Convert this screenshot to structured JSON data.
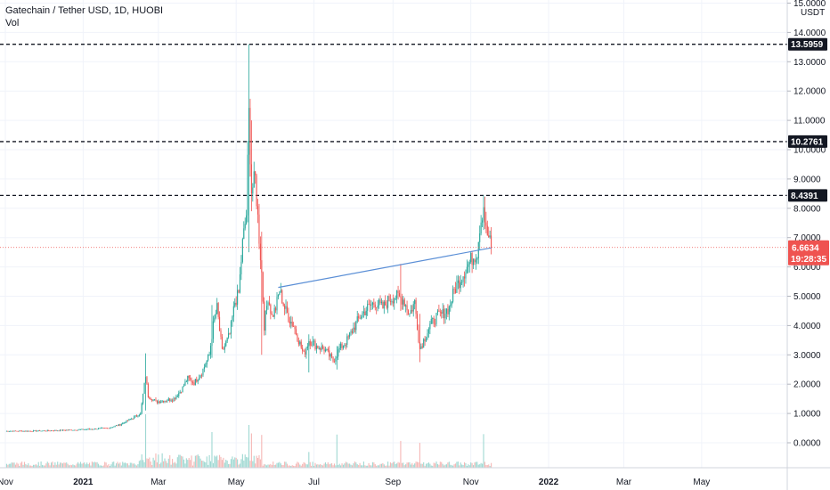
{
  "header": {
    "title": "Gatechain / Tether USD, 1D, HUOBI",
    "volume_label": "Vol"
  },
  "chart_data": {
    "type": "candlestick",
    "currency": "USDT",
    "ylim": [
      -0.4,
      15.2
    ],
    "y_ticks": [
      "15.0000",
      "14.0000",
      "13.0000",
      "12.0000",
      "11.0000",
      "10.0000",
      "9.0000",
      "8.0000",
      "7.0000",
      "6.0000",
      "5.0000",
      "4.0000",
      "3.0000",
      "2.0000",
      "1.0000",
      "0.0000"
    ],
    "x_ticks": [
      {
        "label": "Nov",
        "t": 0
      },
      {
        "label": "2021",
        "t": 61
      },
      {
        "label": "Mar",
        "t": 120
      },
      {
        "label": "May",
        "t": 181
      },
      {
        "label": "Jul",
        "t": 242
      },
      {
        "label": "Sep",
        "t": 304
      },
      {
        "label": "Nov",
        "t": 365
      },
      {
        "label": "2022",
        "t": 426
      },
      {
        "label": "Mar",
        "t": 485
      },
      {
        "label": "May",
        "t": 546
      }
    ],
    "horizontal_levels": [
      {
        "label": "13.5959",
        "value": 13.5959
      },
      {
        "label": "10.2761",
        "value": 10.2761
      },
      {
        "label": "8.4391",
        "value": 8.4391
      }
    ],
    "trendline": {
      "from": {
        "t": 214,
        "v": 5.3
      },
      "to": {
        "t": 381,
        "v": 6.65
      }
    },
    "last_price": {
      "value": 6.6634,
      "label": "6.6634",
      "countdown": "19:28:35"
    },
    "colors": {
      "up": "#26a69a",
      "down": "#ef5350",
      "level": "#131722",
      "trend": "#5b8fd6",
      "price_line": "#ef5350"
    },
    "price_path": [
      [
        0,
        0.4
      ],
      [
        20,
        0.4
      ],
      [
        40,
        0.42
      ],
      [
        60,
        0.45
      ],
      [
        80,
        0.5
      ],
      [
        90,
        0.62
      ],
      [
        100,
        0.85
      ],
      [
        106,
        1.0
      ],
      [
        110,
        2.3
      ],
      [
        112,
        1.6
      ],
      [
        118,
        1.4
      ],
      [
        125,
        1.45
      ],
      [
        132,
        1.5
      ],
      [
        138,
        1.8
      ],
      [
        143,
        2.2
      ],
      [
        148,
        2.05
      ],
      [
        154,
        2.4
      ],
      [
        160,
        3.0
      ],
      [
        163,
        4.0
      ],
      [
        166,
        4.6
      ],
      [
        170,
        3.1
      ],
      [
        176,
        3.7
      ],
      [
        180,
        4.8
      ],
      [
        183,
        5.1
      ],
      [
        186,
        6.8
      ],
      [
        189,
        7.8
      ],
      [
        191,
        11.2
      ],
      [
        193,
        8.6
      ],
      [
        196,
        9.0
      ],
      [
        199,
        7.0
      ],
      [
        201,
        5.8
      ],
      [
        203,
        4.0
      ],
      [
        206,
        5.0
      ],
      [
        209,
        4.3
      ],
      [
        212,
        4.6
      ],
      [
        215,
        5.2
      ],
      [
        219,
        4.6
      ],
      [
        223,
        4.2
      ],
      [
        226,
        4.0
      ],
      [
        230,
        3.5
      ],
      [
        234,
        3.0
      ],
      [
        238,
        3.5
      ],
      [
        244,
        3.3
      ],
      [
        250,
        3.2
      ],
      [
        257,
        2.8
      ],
      [
        262,
        3.2
      ],
      [
        268,
        3.5
      ],
      [
        273,
        3.9
      ],
      [
        278,
        4.3
      ],
      [
        284,
        4.6
      ],
      [
        290,
        4.8
      ],
      [
        296,
        4.6
      ],
      [
        301,
        4.9
      ],
      [
        306,
        5.0
      ],
      [
        312,
        4.9
      ],
      [
        317,
        4.4
      ],
      [
        321,
        4.8
      ],
      [
        325,
        3.2
      ],
      [
        329,
        3.6
      ],
      [
        333,
        4.0
      ],
      [
        338,
        4.3
      ],
      [
        343,
        4.4
      ],
      [
        348,
        4.6
      ],
      [
        352,
        5.2
      ],
      [
        357,
        5.6
      ],
      [
        362,
        6.0
      ],
      [
        366,
        6.3
      ],
      [
        370,
        6.5
      ],
      [
        372,
        7.4
      ],
      [
        375,
        8.1
      ],
      [
        377,
        7.2
      ],
      [
        379,
        7.0
      ],
      [
        381,
        6.66
      ]
    ],
    "spikes": [
      {
        "t": 110,
        "high": 3.05,
        "low": 1.1
      },
      {
        "t": 162,
        "high": 4.7,
        "low": 2.9
      },
      {
        "t": 191,
        "high": 13.5959,
        "low": 6.5
      },
      {
        "t": 193,
        "high": 11.0,
        "low": 7.9
      },
      {
        "t": 201,
        "high": 7.2,
        "low": 3.0
      },
      {
        "t": 238,
        "high": 3.7,
        "low": 2.4
      },
      {
        "t": 260,
        "high": 3.3,
        "low": 2.5
      },
      {
        "t": 325,
        "high": 4.4,
        "low": 2.75
      },
      {
        "t": 375,
        "high": 8.4391,
        "low": 7.3
      },
      {
        "t": 310,
        "high": 6.1,
        "low": 4.5
      }
    ]
  }
}
